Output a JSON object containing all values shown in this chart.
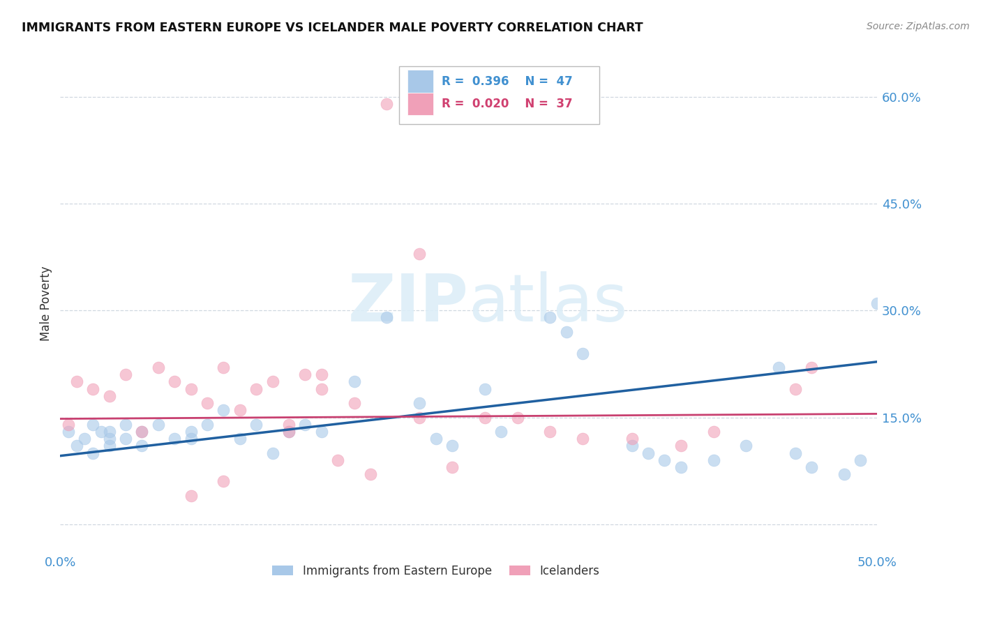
{
  "title": "IMMIGRANTS FROM EASTERN EUROPE VS ICELANDER MALE POVERTY CORRELATION CHART",
  "source": "Source: ZipAtlas.com",
  "ylabel": "Male Poverty",
  "xlim": [
    0.0,
    0.5
  ],
  "ylim": [
    -0.04,
    0.66
  ],
  "yticks": [
    0.0,
    0.15,
    0.3,
    0.45,
    0.6
  ],
  "ytick_labels": [
    "",
    "15.0%",
    "30.0%",
    "45.0%",
    "60.0%"
  ],
  "xticks": [
    0.0,
    0.1,
    0.2,
    0.3,
    0.4,
    0.5
  ],
  "xtick_labels": [
    "0.0%",
    "",
    "",
    "",
    "",
    "50.0%"
  ],
  "blue_color": "#a8c8e8",
  "pink_color": "#f0a0b8",
  "blue_line_color": "#2060a0",
  "pink_line_color": "#c84070",
  "axis_tick_color": "#4090d0",
  "watermark_color": "#ddeef8",
  "legend_blue_label": "Immigrants from Eastern Europe",
  "legend_pink_label": "Icelanders",
  "blue_R": "0.396",
  "blue_N": "47",
  "pink_R": "0.020",
  "pink_N": "37",
  "blue_scatter_x": [
    0.005,
    0.01,
    0.015,
    0.02,
    0.02,
    0.025,
    0.03,
    0.03,
    0.03,
    0.04,
    0.04,
    0.05,
    0.05,
    0.06,
    0.07,
    0.08,
    0.08,
    0.09,
    0.1,
    0.11,
    0.12,
    0.13,
    0.14,
    0.15,
    0.16,
    0.18,
    0.2,
    0.22,
    0.24,
    0.27,
    0.3,
    0.31,
    0.32,
    0.35,
    0.36,
    0.37,
    0.38,
    0.4,
    0.42,
    0.44,
    0.45,
    0.46,
    0.48,
    0.49,
    0.5,
    0.23,
    0.26
  ],
  "blue_scatter_y": [
    0.13,
    0.11,
    0.12,
    0.14,
    0.1,
    0.13,
    0.12,
    0.11,
    0.13,
    0.12,
    0.14,
    0.11,
    0.13,
    0.14,
    0.12,
    0.13,
    0.12,
    0.14,
    0.16,
    0.12,
    0.14,
    0.1,
    0.13,
    0.14,
    0.13,
    0.2,
    0.29,
    0.17,
    0.11,
    0.13,
    0.29,
    0.27,
    0.24,
    0.11,
    0.1,
    0.09,
    0.08,
    0.09,
    0.11,
    0.22,
    0.1,
    0.08,
    0.07,
    0.09,
    0.31,
    0.12,
    0.19
  ],
  "pink_scatter_x": [
    0.005,
    0.01,
    0.02,
    0.03,
    0.04,
    0.05,
    0.06,
    0.07,
    0.08,
    0.09,
    0.1,
    0.11,
    0.12,
    0.13,
    0.14,
    0.15,
    0.16,
    0.17,
    0.18,
    0.19,
    0.2,
    0.22,
    0.24,
    0.26,
    0.28,
    0.3,
    0.32,
    0.35,
    0.38,
    0.4,
    0.45,
    0.46,
    0.22,
    0.14,
    0.16,
    0.08,
    0.1
  ],
  "pink_scatter_y": [
    0.14,
    0.2,
    0.19,
    0.18,
    0.21,
    0.13,
    0.22,
    0.2,
    0.19,
    0.17,
    0.22,
    0.16,
    0.19,
    0.2,
    0.14,
    0.21,
    0.19,
    0.09,
    0.17,
    0.07,
    0.59,
    0.15,
    0.08,
    0.15,
    0.15,
    0.13,
    0.12,
    0.12,
    0.11,
    0.13,
    0.19,
    0.22,
    0.38,
    0.13,
    0.21,
    0.04,
    0.06
  ],
  "blue_line_x": [
    0.0,
    0.5
  ],
  "blue_line_y": [
    0.096,
    0.228
  ],
  "pink_line_x": [
    0.0,
    0.5
  ],
  "pink_line_y": [
    0.148,
    0.155
  ],
  "background_color": "#ffffff",
  "grid_color": "#d0d8e0"
}
